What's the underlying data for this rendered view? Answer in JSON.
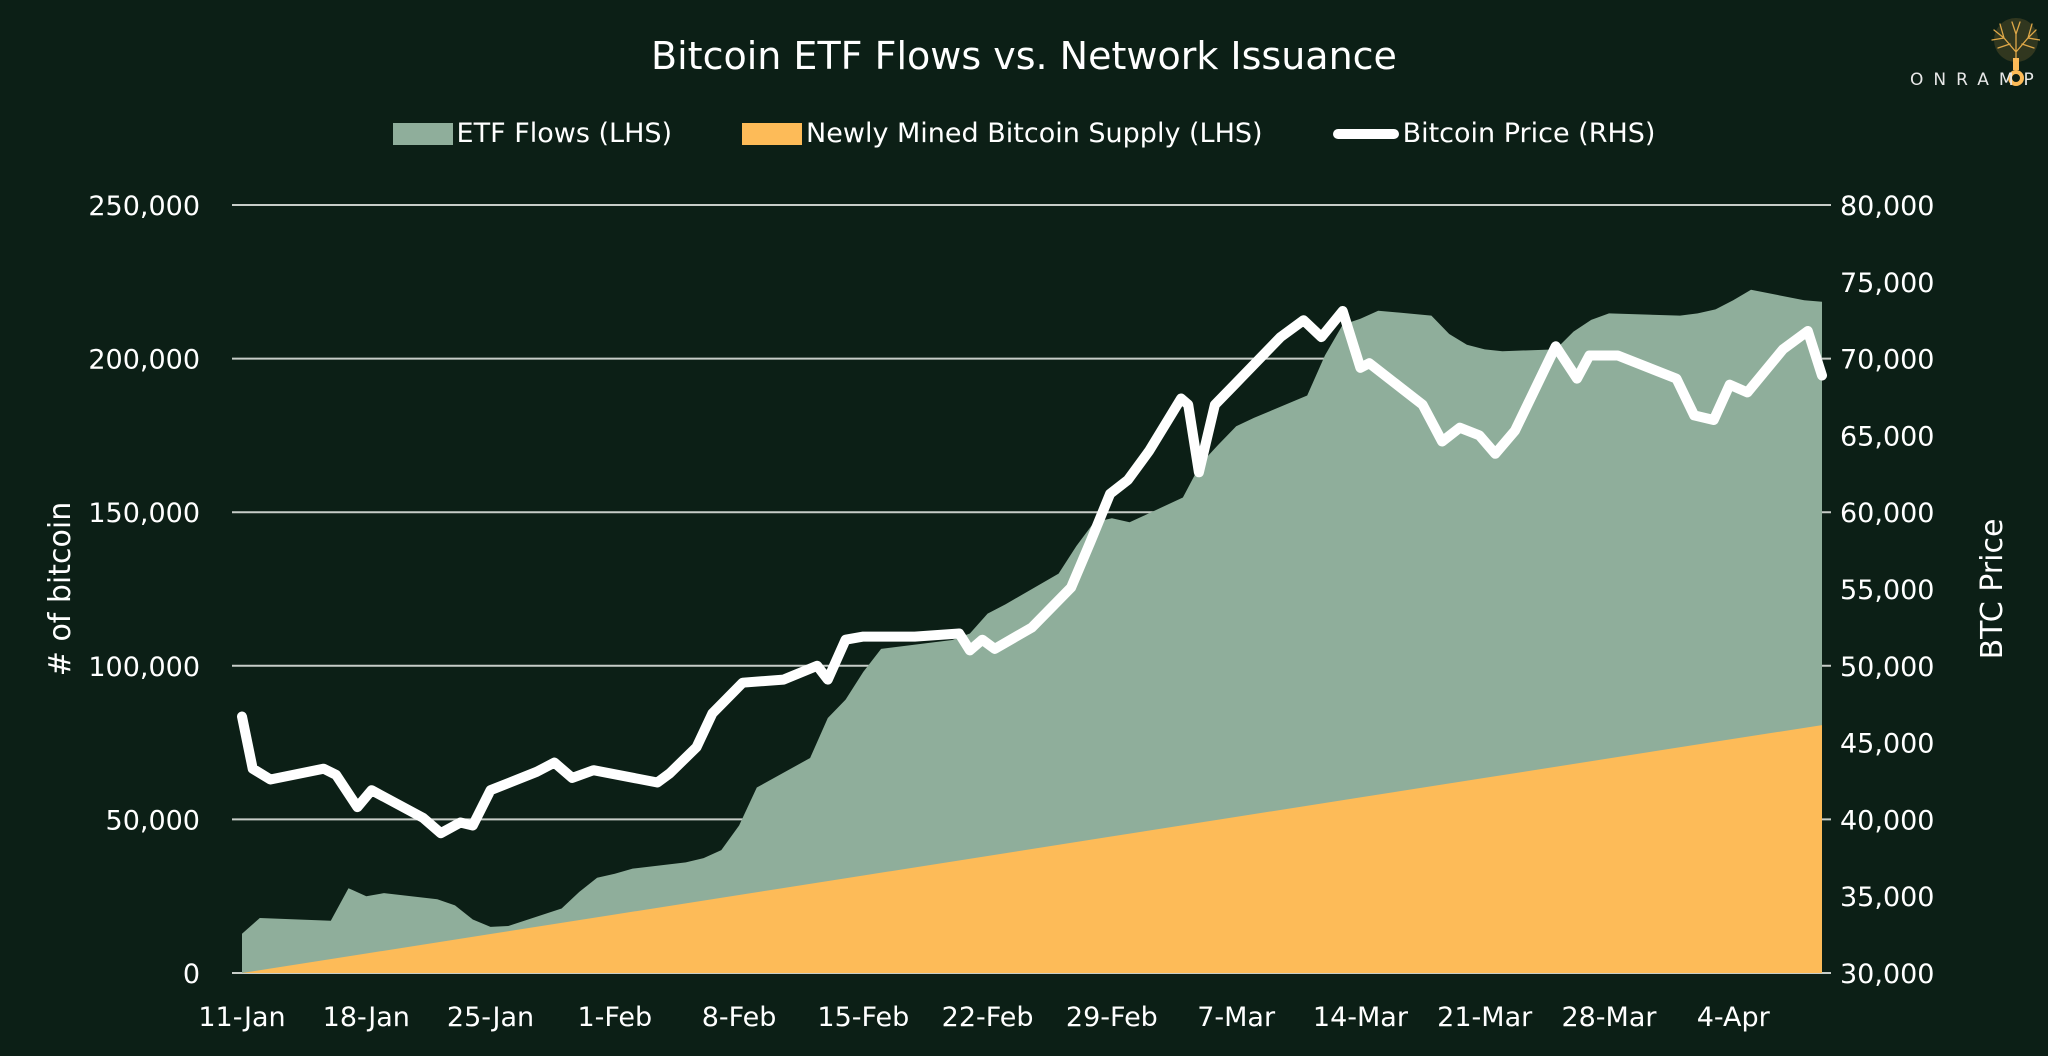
{
  "logo": {
    "text": "ONRAMP"
  },
  "chart_data": {
    "type": "area",
    "title": "Bitcoin ETF Flows vs. Network Issuance",
    "ylabel": "# of bitcoin",
    "ylabel_right": "BTC Price",
    "xlabel": "",
    "x_units": "days since 11-Jan",
    "xlim": [
      0,
      89
    ],
    "ylim": [
      0,
      250000
    ],
    "ylim_right": [
      30000,
      80000
    ],
    "grid": true,
    "legend_placement": "top-center",
    "x_ticks": [
      {
        "x": 0,
        "label": "11-Jan"
      },
      {
        "x": 7,
        "label": "18-Jan"
      },
      {
        "x": 14,
        "label": "25-Jan"
      },
      {
        "x": 21,
        "label": "1-Feb"
      },
      {
        "x": 28,
        "label": "8-Feb"
      },
      {
        "x": 35,
        "label": "15-Feb"
      },
      {
        "x": 42,
        "label": "22-Feb"
      },
      {
        "x": 49,
        "label": "29-Feb"
      },
      {
        "x": 56,
        "label": "7-Mar"
      },
      {
        "x": 63,
        "label": "14-Mar"
      },
      {
        "x": 70,
        "label": "21-Mar"
      },
      {
        "x": 77,
        "label": "28-Mar"
      },
      {
        "x": 84,
        "label": "4-Apr"
      }
    ],
    "y_ticks": [
      {
        "v": 0,
        "label": "0"
      },
      {
        "v": 50000,
        "label": "50,000"
      },
      {
        "v": 100000,
        "label": "100,000"
      },
      {
        "v": 150000,
        "label": "150,000"
      },
      {
        "v": 200000,
        "label": "200,000"
      },
      {
        "v": 250000,
        "label": "250,000"
      }
    ],
    "y_ticks_right": [
      {
        "v": 30000,
        "label": "30,000"
      },
      {
        "v": 35000,
        "label": "35,000"
      },
      {
        "v": 40000,
        "label": "40,000"
      },
      {
        "v": 45000,
        "label": "45,000"
      },
      {
        "v": 50000,
        "label": "50,000"
      },
      {
        "v": 55000,
        "label": "55,000"
      },
      {
        "v": 60000,
        "label": "60,000"
      },
      {
        "v": 65000,
        "label": "65,000"
      },
      {
        "v": 70000,
        "label": "70,000"
      },
      {
        "v": 75000,
        "label": "75,000"
      },
      {
        "v": 80000,
        "label": "80,000"
      }
    ],
    "series": [
      {
        "name": "ETF Flows (LHS)",
        "axis": "left",
        "kind": "area",
        "color": "#8fae9b",
        "x": [
          0,
          1,
          5,
          6,
          7,
          8,
          11,
          12,
          13,
          14,
          15,
          18,
          19,
          20,
          21,
          22,
          25,
          26,
          27,
          28,
          29,
          32,
          33,
          34,
          35,
          36,
          40,
          41,
          42,
          43,
          46,
          47,
          48,
          49,
          50,
          53,
          54,
          55,
          56,
          57,
          60,
          61,
          62,
          63,
          64,
          67,
          68,
          69,
          70,
          71,
          74,
          75,
          76,
          77,
          81,
          82,
          83,
          84,
          85,
          88,
          89
        ],
        "values": [
          12800,
          17900,
          17000,
          27600,
          25000,
          26000,
          24000,
          22000,
          17400,
          15000,
          15300,
          21000,
          26400,
          31000,
          32300,
          34000,
          36000,
          37400,
          40000,
          48000,
          60400,
          70000,
          83000,
          89000,
          98000,
          105500,
          108400,
          110500,
          117000,
          120000,
          130000,
          139000,
          146700,
          148000,
          146700,
          154800,
          165800,
          172000,
          178000,
          180700,
          188000,
          201000,
          211000,
          213000,
          215600,
          214000,
          208000,
          204500,
          203000,
          202400,
          203000,
          208800,
          212600,
          214700,
          214000,
          214700,
          216000,
          219000,
          222400,
          219000,
          218500
        ]
      },
      {
        "name": "Newly Mined Bitcoin Supply (LHS)",
        "axis": "left",
        "kind": "area",
        "color": "#fdbb58",
        "x": [
          0,
          7,
          14,
          21,
          28,
          35,
          42,
          49,
          56,
          63,
          70,
          77,
          84,
          89
        ],
        "values": [
          0,
          6350,
          12700,
          19050,
          25400,
          31750,
          38100,
          44450,
          50800,
          57150,
          63500,
          69850,
          76200,
          80700
        ]
      },
      {
        "name": "Bitcoin Price (RHS)",
        "axis": "right",
        "kind": "line",
        "color": "#ffffff",
        "x": [
          0,
          0.6,
          1.6,
          4.6,
          5.3,
          6.5,
          7.3,
          10.2,
          11.2,
          12.3,
          13,
          14,
          16.6,
          17.6,
          18.6,
          19.8,
          23.4,
          24.1,
          25.6,
          26.5,
          28.2,
          30.5,
          32.4,
          33,
          34,
          35,
          37.9,
          40.4,
          41,
          41.7,
          42.4,
          44.5,
          46.7,
          47.8,
          48.9,
          49.9,
          51.1,
          52.9,
          53.3,
          53.9,
          54.8,
          55.9,
          58.5,
          59.8,
          60.8,
          62,
          63,
          63.5,
          66.5,
          67.6,
          68.6,
          69.7,
          70.6,
          71.7,
          74,
          75.2,
          75.9,
          77.5,
          80.8,
          81.8,
          82.9,
          83.8,
          84.8,
          86.8,
          88.2,
          89
        ],
        "values": [
          46700,
          43300,
          42600,
          43300,
          42900,
          40800,
          41900,
          40100,
          39100,
          39800,
          39600,
          41900,
          43100,
          43700,
          42700,
          43200,
          42400,
          43000,
          44700,
          46900,
          48900,
          49100,
          50000,
          49100,
          51700,
          51900,
          51900,
          52100,
          51000,
          51700,
          51100,
          52500,
          55100,
          58100,
          61200,
          62100,
          64000,
          67400,
          67000,
          62600,
          67000,
          68300,
          71400,
          72500,
          71400,
          73100,
          69400,
          69700,
          67000,
          64600,
          65500,
          65000,
          63800,
          65300,
          70800,
          68700,
          70200,
          70200,
          68700,
          66300,
          66000,
          68300,
          67800,
          70600,
          71800,
          68900
        ]
      }
    ]
  }
}
